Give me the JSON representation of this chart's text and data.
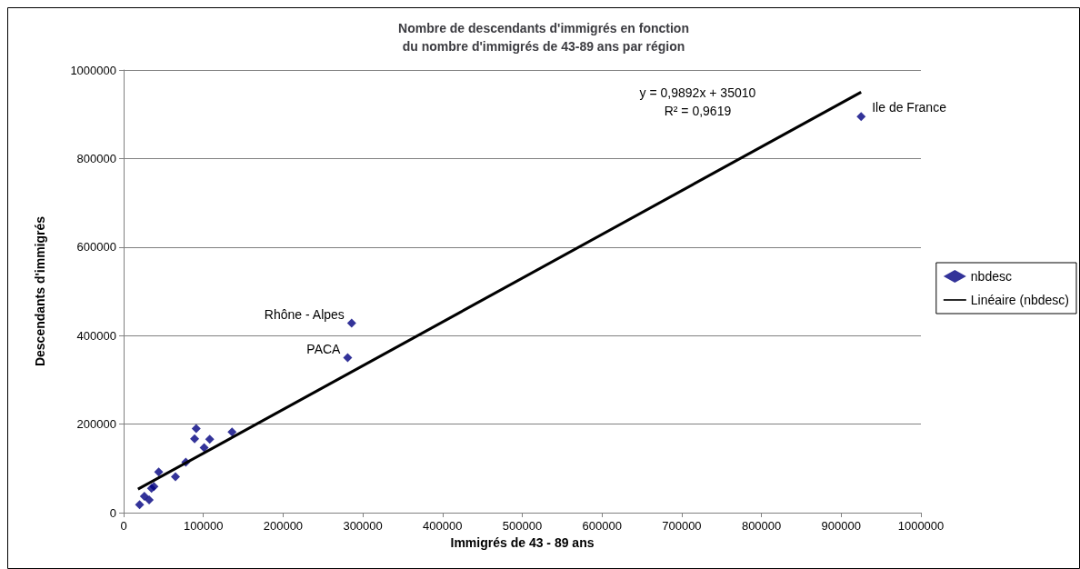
{
  "chart_data": {
    "type": "scatter",
    "title": "Nombre de descendants d'immigrés en fonction\ndu nombre d'immigrés de 43-89 ans par région",
    "xlabel": "Immigrés de 43 - 89 ans",
    "ylabel": "Descendants d'immigrés",
    "x": [
      925000,
      286000,
      281000,
      136000,
      91000,
      89000,
      108000,
      101000,
      78000,
      65000,
      44000,
      38000,
      35000,
      26000,
      32000,
      20000
    ],
    "series": [
      {
        "name": "nbdesc",
        "color": "#000080",
        "values": [
          895000,
          428000,
          350000,
          182000,
          190000,
          167000,
          166000,
          147000,
          114000,
          81000,
          92000,
          59000,
          55000,
          37000,
          29000,
          18000
        ]
      },
      {
        "name": "Linéaire (nbdesc)",
        "type": "line",
        "color": "#000000",
        "x": [
          18000,
          925000
        ],
        "values": [
          53000,
          950000
        ],
        "marker": "none"
      }
    ],
    "annotations": [
      "y = 0,9892x + 35010",
      "R² = 0,9619",
      {
        "text": "Ile de France",
        "x": 925000,
        "y": 895000
      },
      {
        "text": "Rhône - Alpes",
        "x": 286000,
        "y": 428000
      },
      {
        "text": "PACA",
        "x": 281000,
        "y": 350000
      }
    ],
    "xlim": [
      0,
      1000000
    ],
    "xticks": [
      0,
      100000,
      200000,
      300000,
      400000,
      500000,
      600000,
      700000,
      800000,
      900000,
      1000000
    ],
    "ylim": [
      0,
      1000000
    ],
    "yticks": [
      0,
      200000,
      400000,
      600000,
      800000,
      1000000
    ],
    "grid": "y",
    "legend": "right",
    "marker": "diamond"
  }
}
